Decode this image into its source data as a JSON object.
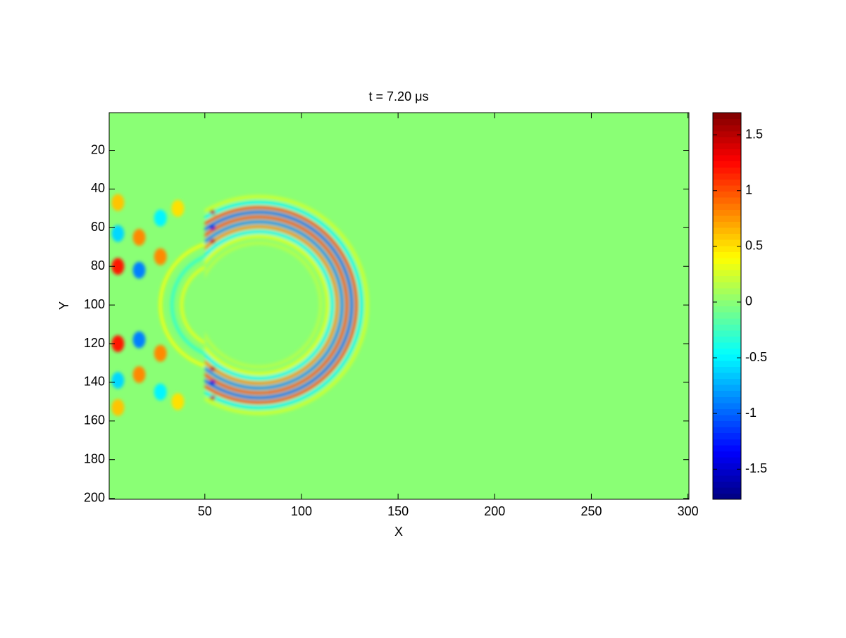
{
  "chart_data": {
    "type": "image",
    "title": "t = 7.20 μs",
    "x_label": "X",
    "y_label": "Y",
    "xlim": [
      0.5,
      300.5
    ],
    "xticks": [
      50,
      100,
      150,
      200,
      250,
      300
    ],
    "ylim": [
      0.5,
      200.5
    ],
    "yticks": [
      20,
      40,
      60,
      80,
      100,
      120,
      140,
      160,
      180,
      200
    ],
    "y_reversed": true,
    "colormap": "jet",
    "clim": [
      -1.77,
      1.7
    ],
    "cticks": [
      -1.5,
      -1,
      -0.5,
      0,
      0.5,
      1,
      1.5
    ],
    "background_value": 0,
    "rings": [
      {
        "cx": 78,
        "cy": 100,
        "r": 56,
        "value": 0.25,
        "xmin": 50,
        "xmax": 300
      },
      {
        "cx": 78,
        "cy": 100,
        "r": 53,
        "value": -0.5,
        "xmin": 50,
        "xmax": 300
      },
      {
        "cx": 78,
        "cy": 100,
        "r": 50.5,
        "value": 1.0,
        "xmin": 50,
        "xmax": 300
      },
      {
        "cx": 78,
        "cy": 100,
        "r": 48,
        "value": -1.0,
        "xmin": 50,
        "xmax": 300
      },
      {
        "cx": 78,
        "cy": 100,
        "r": 45.5,
        "value": 1.0,
        "xmin": 50,
        "xmax": 300
      },
      {
        "cx": 78,
        "cy": 100,
        "r": 43,
        "value": -0.9,
        "xmin": 50,
        "xmax": 300
      },
      {
        "cx": 78,
        "cy": 100,
        "r": 40.5,
        "value": 0.8,
        "xmin": 50,
        "xmax": 300
      },
      {
        "cx": 78,
        "cy": 100,
        "r": 38,
        "value": -0.5,
        "xmin": 50,
        "xmax": 300
      },
      {
        "cx": 78,
        "cy": 100,
        "r": 35.5,
        "value": 0.3,
        "xmin": 50,
        "xmax": 300
      },
      {
        "cx": 78,
        "cy": 100,
        "r": 32,
        "value": 0.15,
        "xmin": 50,
        "xmax": 300
      },
      {
        "cx": 60,
        "cy": 100,
        "r": 22,
        "value": 0.3,
        "xmin": 0.5,
        "xmax": 50
      },
      {
        "cx": 60,
        "cy": 100,
        "r": 27,
        "value": -0.3,
        "xmin": 0.5,
        "xmax": 50
      },
      {
        "cx": 60,
        "cy": 100,
        "r": 33,
        "value": 0.35,
        "xmin": 0.5,
        "xmax": 50
      }
    ],
    "blobs": [
      {
        "x": 5,
        "y": 47,
        "value": 0.6
      },
      {
        "x": 5,
        "y": 63,
        "value": -0.6
      },
      {
        "x": 5,
        "y": 80,
        "value": 1.2
      },
      {
        "x": 5,
        "y": 120,
        "value": 1.2
      },
      {
        "x": 5,
        "y": 139,
        "value": -0.6
      },
      {
        "x": 5,
        "y": 153,
        "value": 0.6
      },
      {
        "x": 16,
        "y": 65,
        "value": 0.8
      },
      {
        "x": 16,
        "y": 82,
        "value": -0.9
      },
      {
        "x": 16,
        "y": 118,
        "value": -0.9
      },
      {
        "x": 16,
        "y": 136,
        "value": 0.8
      },
      {
        "x": 27,
        "y": 55,
        "value": -0.5
      },
      {
        "x": 27,
        "y": 75,
        "value": 0.8
      },
      {
        "x": 27,
        "y": 125,
        "value": 0.8
      },
      {
        "x": 27,
        "y": 145,
        "value": -0.5
      },
      {
        "x": 36,
        "y": 50,
        "value": 0.5
      },
      {
        "x": 36,
        "y": 150,
        "value": 0.5
      },
      {
        "x": 54,
        "y": 52,
        "value": 1.5
      },
      {
        "x": 54,
        "y": 60,
        "value": -1.5
      },
      {
        "x": 54,
        "y": 67,
        "value": 1.5
      },
      {
        "x": 54,
        "y": 133,
        "value": 1.5
      },
      {
        "x": 54,
        "y": 140,
        "value": -1.5
      },
      {
        "x": 54,
        "y": 148,
        "value": 1.5
      }
    ]
  }
}
